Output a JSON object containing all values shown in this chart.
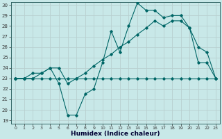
{
  "xlabel": "Humidex (Indice chaleur)",
  "background_color": "#c8e8e8",
  "line_color": "#006666",
  "grid_color": "#b0d8d8",
  "x_values": [
    0,
    1,
    2,
    3,
    4,
    5,
    6,
    7,
    8,
    9,
    10,
    11,
    12,
    13,
    14,
    15,
    16,
    17,
    18,
    19,
    20,
    21,
    22,
    23
  ],
  "line_min": [
    23.0,
    23.0,
    23.0,
    23.0,
    23.0,
    23.0,
    23.0,
    23.0,
    23.0,
    23.0,
    23.0,
    23.0,
    23.0,
    23.0,
    23.0,
    23.0,
    23.0,
    23.0,
    23.0,
    23.0,
    23.0,
    23.0,
    23.0,
    23.0
  ],
  "line_spike": [
    23.0,
    23.0,
    23.0,
    23.5,
    24.0,
    22.5,
    19.5,
    19.5,
    21.5,
    22.0,
    24.5,
    27.5,
    25.5,
    28.0,
    30.2,
    29.5,
    29.5,
    28.8,
    29.0,
    29.0,
    27.8,
    24.5,
    24.5,
    23.0
  ],
  "line_trend": [
    23.0,
    23.0,
    23.5,
    23.5,
    24.0,
    24.0,
    22.5,
    23.0,
    23.5,
    24.2,
    24.8,
    25.3,
    26.0,
    26.5,
    27.2,
    27.8,
    28.5,
    28.0,
    28.5,
    28.5,
    27.8,
    26.0,
    25.5,
    23.0
  ],
  "ylim_min": 19,
  "ylim_max": 30,
  "yticks": [
    19,
    20,
    21,
    22,
    23,
    24,
    25,
    26,
    27,
    28,
    29,
    30
  ],
  "xticks": [
    0,
    1,
    2,
    3,
    4,
    5,
    6,
    7,
    8,
    9,
    10,
    11,
    12,
    13,
    14,
    15,
    16,
    17,
    18,
    19,
    20,
    21,
    22,
    23
  ]
}
